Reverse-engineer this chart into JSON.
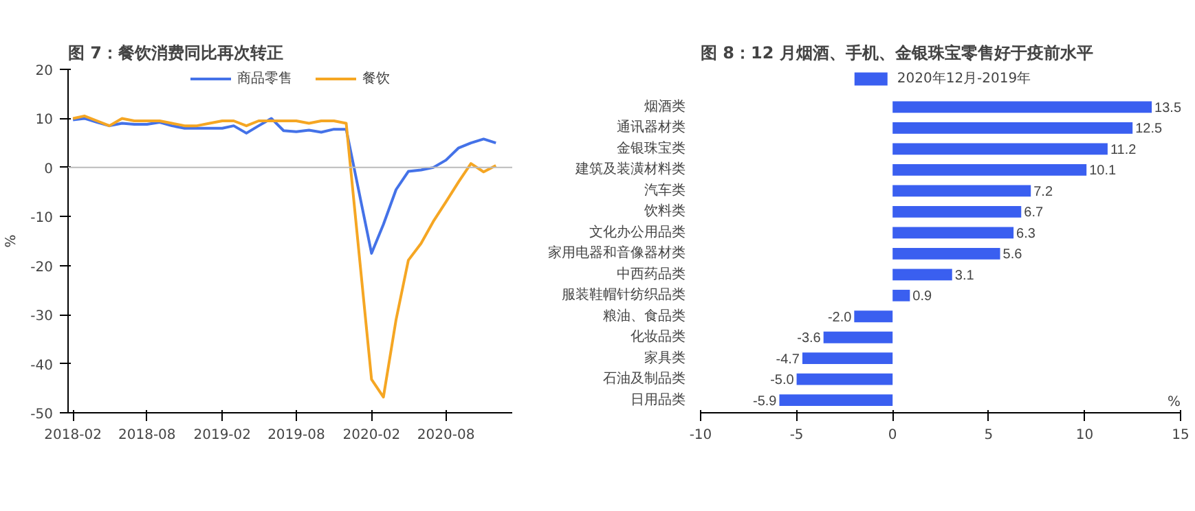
{
  "chart_data": [
    {
      "type": "line",
      "title": "图 7：餐饮消费同比再次转正",
      "ylabel": "%",
      "x": [
        "2018-02",
        "2018-03",
        "2018-04",
        "2018-05",
        "2018-06",
        "2018-07",
        "2018-08",
        "2018-09",
        "2018-10",
        "2018-11",
        "2018-12",
        "2019-01",
        "2019-02",
        "2019-03",
        "2019-04",
        "2019-05",
        "2019-06",
        "2019-07",
        "2019-08",
        "2019-09",
        "2019-10",
        "2019-11",
        "2019-12",
        "2020-02",
        "2020-03",
        "2020-04",
        "2020-05",
        "2020-06",
        "2020-07",
        "2020-08",
        "2020-09",
        "2020-10",
        "2020-11",
        "2020-12"
      ],
      "series": [
        {
          "name": "商品零售",
          "color": "#4472e8",
          "values": [
            9.7,
            10,
            9.2,
            8.5,
            9,
            8.8,
            8.8,
            9.2,
            8.5,
            8,
            8,
            8,
            8,
            8.5,
            7,
            8.5,
            10,
            7.5,
            7.3,
            7.6,
            7.2,
            7.8,
            7.8,
            -17.5,
            -11.6,
            -4.5,
            -0.8,
            -0.5,
            0,
            1.5,
            4,
            5,
            5.8,
            5
          ]
        },
        {
          "name": "餐饮",
          "color": "#f5a623",
          "values": [
            10,
            10.5,
            9.5,
            8.5,
            10,
            9.5,
            9.5,
            9.5,
            9,
            8.5,
            8.5,
            9,
            9.5,
            9.5,
            8.5,
            9.5,
            9.5,
            9.5,
            9.5,
            9,
            9.5,
            9.5,
            9,
            -43.2,
            -46.8,
            -31,
            -18.9,
            -15.5,
            -11,
            -7,
            -2.9,
            0.8,
            -0.9,
            0.4
          ]
        }
      ],
      "xlim": [
        "2018-01-20",
        "2021-01-10"
      ],
      "xticks": [
        "2018-02",
        "2018-08",
        "2019-02",
        "2019-08",
        "2020-02",
        "2020-08"
      ],
      "ylim": [
        -50,
        20
      ],
      "yticks": [
        -50,
        -40,
        -30,
        -20,
        -10,
        0,
        10,
        20
      ],
      "ref_lines": [
        {
          "axis": "y",
          "value": 0,
          "color": "#bbbbbb"
        }
      ],
      "legend": "top",
      "grid": false
    },
    {
      "type": "bar",
      "orientation": "horizontal",
      "title": "图 8：12 月烟酒、手机、金银珠宝零售好于疫前水平",
      "xlabel": "%",
      "categories": [
        "烟酒类",
        "通讯器材类",
        "金银珠宝类",
        "建筑及装潢材料类",
        "汽车类",
        "饮料类",
        "文化办公用品类",
        "家用电器和音像器材类",
        "中西药品类",
        "服装鞋帽针纺织品类",
        "粮油、食品类",
        "化妆品类",
        "家具类",
        "石油及制品类",
        "日用品类"
      ],
      "series": [
        {
          "name": "2020年12月-2019年",
          "color": "#3a5ff0",
          "values": [
            13.5,
            12.5,
            11.2,
            10.1,
            7.2,
            6.7,
            6.3,
            5.6,
            3.1,
            0.9,
            -2.0,
            -3.6,
            -4.7,
            -5.0,
            -5.9
          ],
          "value_labels": [
            "13.5",
            "12.5",
            "11.2",
            "10.1",
            "7.2",
            "6.7",
            "6.3",
            "5.6",
            "3.1",
            "0.9",
            "-2.0",
            "-3.6",
            "-4.7",
            "-5.0",
            "-5.9"
          ]
        }
      ],
      "xlim": [
        -10,
        15
      ],
      "xticks": [
        -10,
        -5,
        0,
        5,
        10,
        15
      ],
      "legend": "top",
      "grid": false
    }
  ]
}
